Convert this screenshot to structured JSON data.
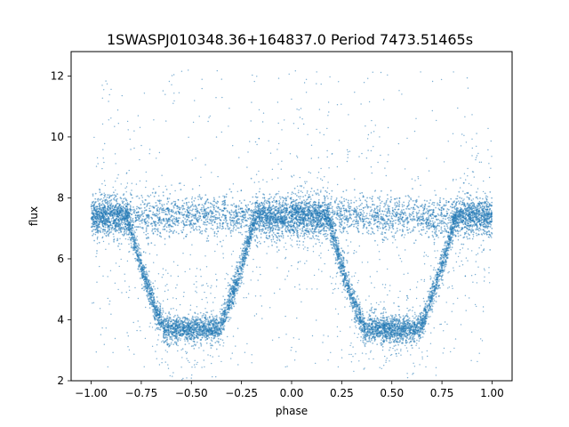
{
  "chart_data": {
    "type": "scatter",
    "title": "1SWASPJ010348.36+164837.0 Period 7473.51465s",
    "xlabel": "phase",
    "ylabel": "flux",
    "xlim": [
      -1.1,
      1.1
    ],
    "ylim": [
      2.0,
      12.8
    ],
    "x_ticks": [
      -1.0,
      -0.75,
      -0.5,
      -0.25,
      0.0,
      0.25,
      0.5,
      0.75,
      1.0
    ],
    "x_tick_labels": [
      "−1.00",
      "−0.75",
      "−0.50",
      "−0.25",
      "0.00",
      "0.25",
      "0.50",
      "0.75",
      "1.00"
    ],
    "y_ticks": [
      2,
      4,
      6,
      8,
      10,
      12
    ],
    "y_tick_labels": [
      "2",
      "4",
      "6",
      "8",
      "10",
      "12"
    ],
    "grid": false,
    "legend": "none",
    "series": [
      {
        "color": "#1f77b4",
        "x_range": [
          -1.0,
          1.0
        ],
        "baseline_flux": 7.4,
        "baseline_spread": 0.45,
        "eclipse_centers": [
          -0.5,
          0.5
        ],
        "eclipse_min_flux": 3.7,
        "eclipse_half_width": 0.32,
        "outlier_range": [
          2.4,
          12.2
        ]
      }
    ]
  }
}
